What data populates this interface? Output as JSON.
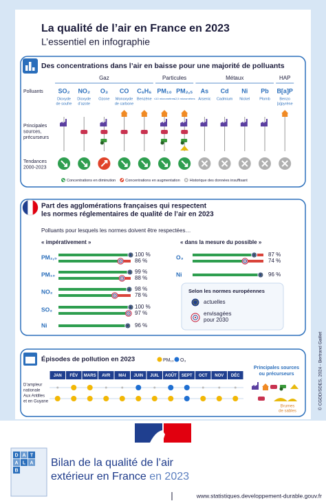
{
  "header": {
    "title": "La qualité de l’air en France en 2023",
    "subtitle": "L’essentiel en infographie"
  },
  "concentrations": {
    "title": "Des concentrations dans l’air en baisse pour une majorité de polluants",
    "row_labels": [
      [
        "Polluants"
      ],
      [
        "Principales",
        "sources,",
        "précurseurs"
      ],
      [
        "Tendances",
        "2000-2023"
      ]
    ],
    "groups": [
      {
        "label": "Gaz",
        "pollutants": [
          {
            "formula": "SO₂",
            "name": [
              "Dioxyde",
              "de soufre"
            ],
            "trend": "down"
          },
          {
            "formula": "NO₂",
            "name": [
              "Dioxyde",
              "d’azote"
            ],
            "trend": "down"
          },
          {
            "formula": "O₃",
            "name": [
              "Ozone"
            ],
            "trend": "up"
          },
          {
            "formula": "CO",
            "name": [
              "Monoxyde",
              "de carbone"
            ],
            "trend": "down"
          },
          {
            "formula": "C₆H₆",
            "name": [
              "Benzène"
            ],
            "trend": "down"
          }
        ]
      },
      {
        "label": "Particules",
        "pollutants": [
          {
            "formula": "PM₁₀",
            "name": [
              "≤10 micromètres"
            ],
            "trend": "down"
          },
          {
            "formula": "PM₂,₅",
            "name": [
              "≤2,5 micromètres"
            ],
            "trend": "down"
          }
        ]
      },
      {
        "label": "Métaux",
        "pollutants": [
          {
            "formula": "As",
            "name": [
              "Arsenic"
            ],
            "trend": "unknown"
          },
          {
            "formula": "Cd",
            "name": [
              "Cadmium"
            ],
            "trend": "unknown"
          },
          {
            "formula": "Ni",
            "name": [
              "Nickel"
            ],
            "trend": "unknown"
          },
          {
            "formula": "Pb",
            "name": [
              "Plomb"
            ],
            "trend": "unknown"
          }
        ]
      },
      {
        "label": "HAP",
        "pollutants": [
          {
            "formula": "B[a]P",
            "name": [
              "Benzo",
              "[a]pyrène"
            ],
            "trend": "unknown"
          }
        ]
      }
    ],
    "legend": [
      {
        "trend": "down",
        "label": "Concentrations en diminution"
      },
      {
        "trend": "up",
        "label": "Concentrations en augmentation"
      },
      {
        "trend": "unknown",
        "label": "Historique des données insuffisant"
      }
    ]
  },
  "agglomerations": {
    "title_lines": [
      "Part des agglomérations françaises qui respectent",
      "les normes réglementaires de qualité de l’air en 2023"
    ],
    "intro": "Polluants pour lesquels les normes doivent être respectées…",
    "xlim": [
      0,
      100
    ],
    "panels": [
      {
        "heading": "« impérativement »",
        "rows": [
          {
            "pollutant": "PM₂,₅",
            "values": [
              {
                "value": 100,
                "label": "100 %"
              },
              {
                "value": 86,
                "label": "86 %"
              }
            ]
          },
          {
            "pollutant": "PM₁₀",
            "values": [
              {
                "value": 99,
                "label": "99 %"
              },
              {
                "value": 88,
                "label": "88 %"
              }
            ]
          },
          {
            "pollutant": "NO₂",
            "values": [
              {
                "value": 98,
                "label": "98 %"
              },
              {
                "value": 78,
                "label": "78 %"
              }
            ]
          },
          {
            "pollutant": "SO₂",
            "values": [
              {
                "value": 100,
                "label": "100 %"
              },
              {
                "value": 97,
                "label": "97 %"
              }
            ]
          },
          {
            "pollutant": "Ni",
            "values": [
              {
                "value": 96,
                "label": "96 %"
              }
            ]
          }
        ]
      },
      {
        "heading": "« dans la mesure du possible »",
        "rows": [
          {
            "pollutant": "O₃",
            "values": [
              {
                "value": 87,
                "label": "87 %"
              },
              {
                "value": 74,
                "label": "74 %"
              }
            ]
          },
          {
            "pollutant": "Ni",
            "values": [
              {
                "value": 96,
                "label": "96 %"
              }
            ]
          }
        ]
      }
    ],
    "legend": {
      "title": "Selon les normes européennes",
      "items": [
        [
          "actuelles"
        ],
        [
          "envisagées",
          "pour 2030"
        ]
      ]
    }
  },
  "episodes": {
    "title": "Épisodes de pollution en 2023",
    "legend": [
      {
        "label": "PM₁₀",
        "color": "#f2b705"
      },
      {
        "label": "O₃",
        "color": "#1f6fd1"
      }
    ],
    "months": [
      "JAN",
      "FÉV",
      "MARS",
      "AVR",
      "MAI",
      "JUIN",
      "JUIL",
      "AOÛT",
      "SEPT",
      "OCT",
      "NOV",
      "DÉC"
    ],
    "rows": [
      {
        "label": [
          "D’ampleur",
          "nationale"
        ],
        "events": [
          null,
          0,
          0,
          null,
          null,
          1,
          null,
          1,
          1,
          null,
          null,
          null
        ]
      },
      {
        "label": [
          "Aux Antilles",
          "et en Guyane"
        ],
        "events": [
          0,
          0,
          0,
          0,
          0,
          0,
          0,
          0,
          1,
          0,
          0,
          0
        ]
      }
    ],
    "sources_title": [
      "Principales sources",
      "ou précurseurs"
    ],
    "sand": [
      "Brumes",
      "de sables"
    ]
  },
  "credit": "© CGDD/SDES, 2024 - Bertrand Gaillet",
  "footer": {
    "cover_letters": [
      "D",
      "A",
      "T",
      "A",
      "L",
      "A",
      "B"
    ],
    "title_lines": [
      "Bilan de la qualité de l’air",
      "extérieur en France"
    ],
    "year": "en 2023",
    "url": "www.statistiques.developpement-durable.gouv.fr"
  }
}
